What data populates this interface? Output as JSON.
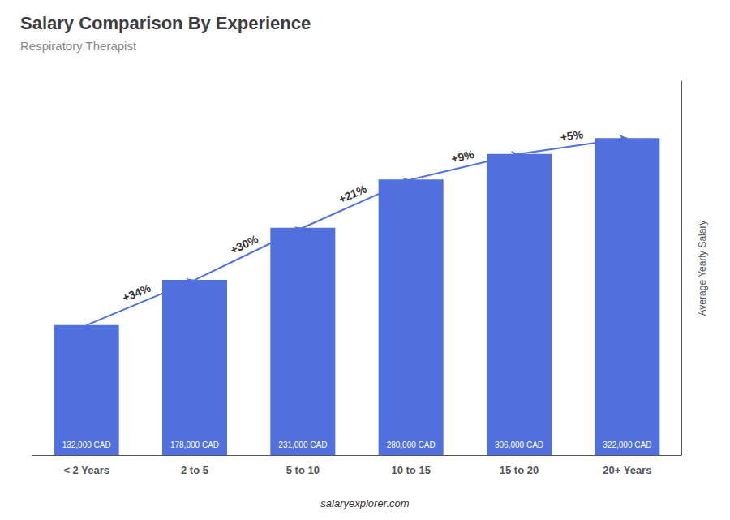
{
  "chart_data": {
    "type": "bar",
    "title": "Salary Comparison By Experience",
    "subtitle": "Respiratory Therapist",
    "categories": [
      "< 2 Years",
      "2 to 5",
      "5 to 10",
      "10 to 15",
      "15 to 20",
      "20+ Years"
    ],
    "values": [
      132000,
      178000,
      231000,
      280000,
      306000,
      322000
    ],
    "value_labels": [
      "132,000 CAD",
      "178,000 CAD",
      "231,000 CAD",
      "280,000 CAD",
      "306,000 CAD",
      "322,000 CAD"
    ],
    "data_labels": true,
    "annotations": [
      "+34%",
      "+30%",
      "+21%",
      "+9%",
      "+5%"
    ],
    "ylabel": "Average Yearly Salary",
    "footer": "salaryexplorer.com",
    "ylim": [
      0,
      380000
    ],
    "yticks": [],
    "grid": false,
    "tick_labels": "x"
  }
}
